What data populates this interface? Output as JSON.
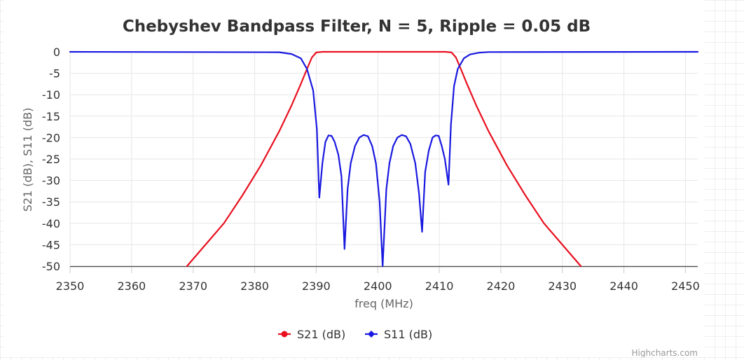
{
  "chart_data": {
    "type": "line",
    "title": "Chebyshev Bandpass Filter, N = 5, Ripple = 0.05 dB",
    "xlabel": "freq (MHz)",
    "ylabel": "S21 (dB), S11 (dB)",
    "xlim": [
      2350,
      2452
    ],
    "ylim": [
      -50,
      0
    ],
    "xticks": [
      "2350",
      "2360",
      "2370",
      "2380",
      "2390",
      "2400",
      "2410",
      "2420",
      "2430",
      "2440",
      "2450"
    ],
    "yticks": [
      "0",
      "-5",
      "-10",
      "-15",
      "-20",
      "-25",
      "-30",
      "-35",
      "-40",
      "-45",
      "-50"
    ],
    "grid": true,
    "legend": "bottom-center",
    "series": [
      {
        "name": "S21 (dB)",
        "color": "#e8101f",
        "x": [
          2369,
          2372,
          2375,
          2378,
          2381,
          2384,
          2386,
          2387.5,
          2388.5,
          2389.3,
          2390,
          2391,
          2394,
          2398,
          2401,
          2404,
          2408,
          2411,
          2412,
          2412.7,
          2413.5,
          2414.5,
          2416,
          2418,
          2421,
          2424,
          2427,
          2430,
          2433
        ],
        "values": [
          -50,
          -45,
          -40,
          -33.5,
          -26.5,
          -18.5,
          -12.5,
          -7.5,
          -4,
          -1.3,
          -0.15,
          0,
          0,
          0,
          0,
          0,
          0,
          0,
          -0.15,
          -1.3,
          -4,
          -7.5,
          -12.5,
          -18.5,
          -26.5,
          -33.5,
          -40,
          -45,
          -50
        ]
      },
      {
        "name": "S11 (dB)",
        "color": "#1818e0",
        "x": [
          2350,
          2384,
          2386,
          2387.5,
          2388.5,
          2389.5,
          2390.1,
          2390.5,
          2391,
          2391.5,
          2392,
          2392.5,
          2393,
          2393.6,
          2394.1,
          2394.6,
          2395.1,
          2395.6,
          2396.3,
          2397,
          2397.7,
          2398.4,
          2399.1,
          2399.7,
          2400.3,
          2400.8,
          2401.4,
          2401.9,
          2402.5,
          2403.2,
          2403.9,
          2404.6,
          2405.3,
          2406.1,
          2406.7,
          2407.2,
          2407.7,
          2408.3,
          2408.9,
          2409.4,
          2409.9,
          2410.4,
          2410.9,
          2411.5,
          2411.9,
          2412.4,
          2413,
          2414,
          2415,
          2416.5,
          2418,
          2452
        ],
        "values": [
          0,
          -0.1,
          -0.5,
          -1.5,
          -4,
          -9,
          -18,
          -34,
          -26,
          -21,
          -19.5,
          -19.6,
          -21,
          -24,
          -29,
          -46,
          -32,
          -26,
          -22,
          -20,
          -19.4,
          -19.7,
          -22,
          -26,
          -35,
          -50,
          -32,
          -26,
          -22,
          -20,
          -19.4,
          -19.7,
          -21.5,
          -26,
          -33,
          -42,
          -28,
          -23,
          -20,
          -19.5,
          -19.6,
          -22,
          -25,
          -31,
          -17,
          -8,
          -4,
          -1.5,
          -0.6,
          -0.2,
          -0.05,
          0
        ]
      }
    ]
  },
  "credits": "Highcharts.com"
}
